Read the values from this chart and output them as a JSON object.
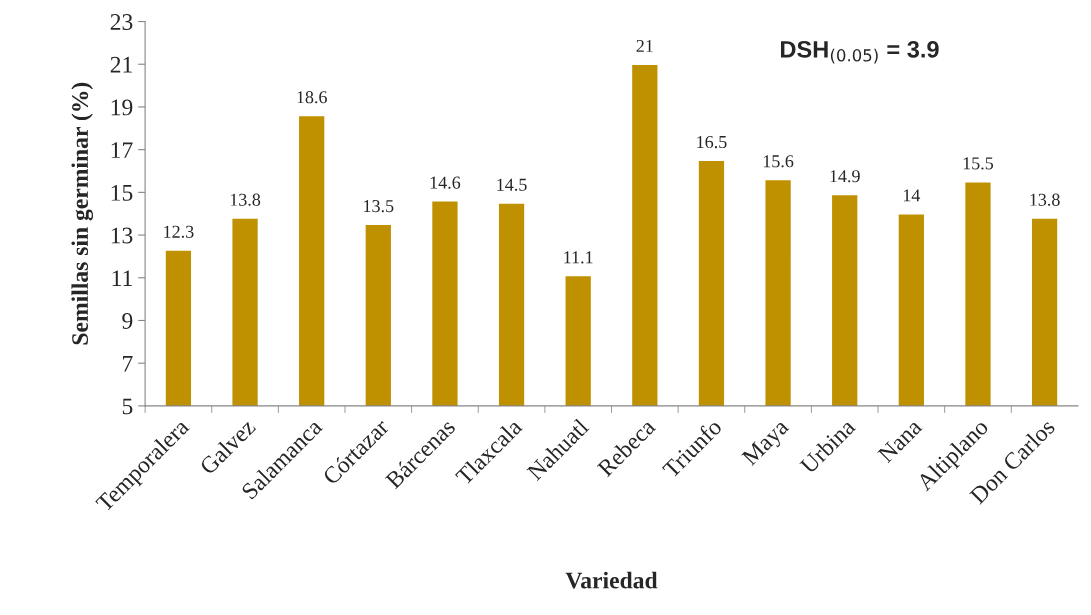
{
  "chart_data": {
    "type": "bar",
    "xlabel": "Variedad",
    "ylabel": "Semillas sin germinar (%)",
    "categories": [
      "Temporalera",
      "Galvez",
      "Salamanca",
      "Córtazar",
      "Bárcenas",
      "Tlaxcala",
      "Nahuatl",
      "Rebeca",
      "Triunfo",
      "Maya",
      "Urbina",
      "Nana",
      "Altiplano",
      "Don Carlos"
    ],
    "values": [
      12.3,
      13.8,
      18.6,
      13.5,
      14.6,
      14.5,
      11.1,
      21,
      16.5,
      15.6,
      14.9,
      14,
      15.5,
      13.8
    ],
    "color": "#bf9000",
    "ylim": [
      5,
      23
    ],
    "yticks": [
      5,
      7,
      9,
      11,
      13,
      15,
      17,
      19,
      21,
      23
    ],
    "data_labels": true,
    "grid": false,
    "annotations": [
      "DSH$_{(0.05)}$ = 3.9"
    ]
  }
}
